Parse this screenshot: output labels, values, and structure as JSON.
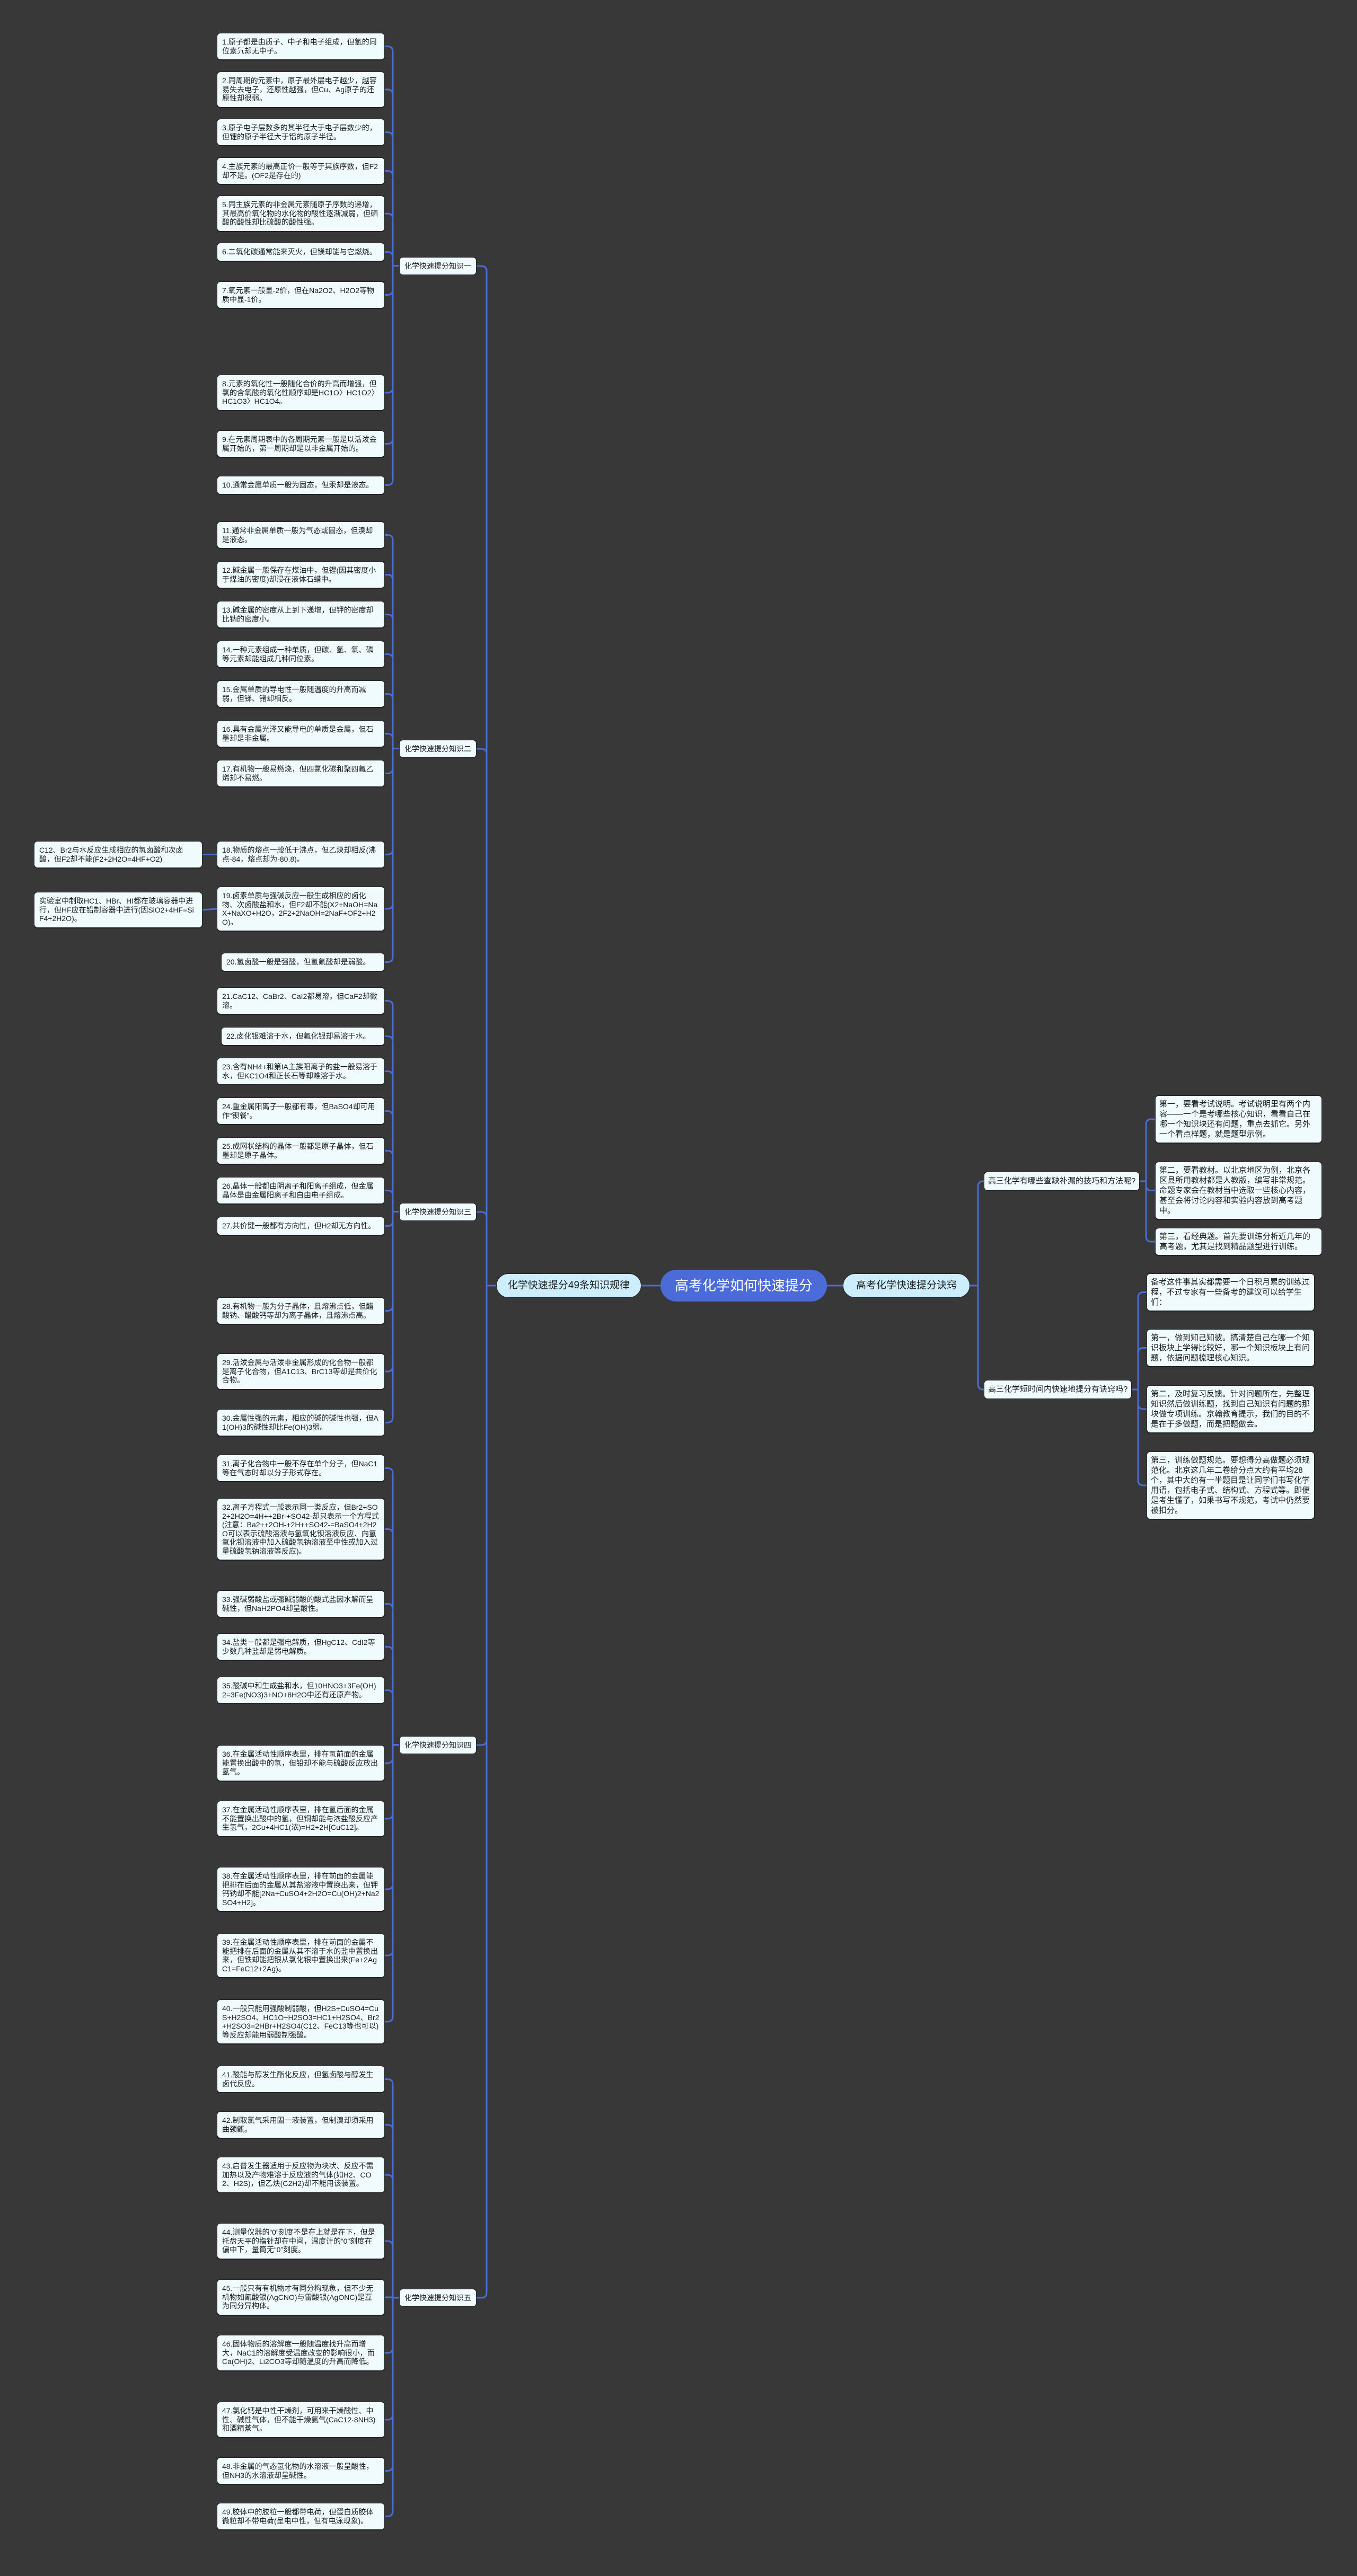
{
  "colors": {
    "background": "#393838",
    "root": "#4a6bd8",
    "branch": "#cdeefc",
    "leaf": "#effbfd",
    "line": "#4a6bd8"
  },
  "root": "高考化学如何快速提分",
  "left_branch": "化学快速提分49条知识规律",
  "right_branch": "高考化学快速提分诀窍",
  "groups": [
    {
      "label": "化学快速提分知识一",
      "items": [
        "1.原子都是由质子、中子和电子组成，但氢的同位素氕却无中子。",
        "2.同周期的元素中，原子最外层电子越少，越容易失去电子，还原性越强，但Cu、Ag原子的还原性却很弱。",
        "3.原子电子层数多的其半径大于电子层数少的，但锂的原子半径大于铝的原子半径。",
        "4.主族元素的最高正价一般等于其族序数，但F2却不是。(OF2是存在的)",
        "5.同主族元素的非金属元素随原子序数的递增，其最高价氧化物的水化物的酸性逐渐减弱，但硒酸的酸性却比硫酸的酸性强。",
        "6.二氧化碳通常能来灭火，但镁却能与它燃烧。",
        "7.氧元素一般显-2价，但在Na2O2、H2O2等物质中显-1价。",
        "8.元素的氧化性一般随化合价的升高而增强，但氯的含氧酸的氧化性顺序却是HC1O〉HC1O2〉HC1O3〉HC1O4。",
        "9.在元素周期表中的各周期元素一般是以活泼金属开始的，第一周期却是以非金属开始的。",
        "10.通常金属单质一般为固态，但汞却是液态。"
      ]
    },
    {
      "label": "化学快速提分知识二",
      "items": [
        "11.通常非金属单质一般为气态或固态，但溴却是液态。",
        "12.碱金属一般保存在煤油中，但锂(因其密度小于煤油的密度)却浸在液体石蜡中。",
        "13.碱金属的密度从上到下递增，但钾的密度却比钠的密度小。",
        "14.一种元素组成一种单质，但碳、氢、氧、磷等元素却能组成几种同位素。",
        "15.金属单质的导电性一般随温度的升高而减弱，但锑、锗却相反。",
        "16.具有金属光泽又能导电的单质是金属，但石墨却是非金属。",
        "17.有机物一般易燃烧，但四氯化碳和聚四氟乙烯却不易燃。",
        "18.物质的熔点一般低于沸点，但乙炔却相反(沸点-84，熔点却为-80.8)。",
        "19.卤素单质与强碱反应一般生成相应的卤化物、次卤酸盐和水，但F2却不能(X2+NaOH=NaX+NaXO+H2O，2F2+2NaOH=2NaF+OF2+H2O)。",
        "20.氢卤酸一般是强酸，但氢氟酸却是弱酸。"
      ]
    },
    {
      "label": "化学快速提分知识三",
      "items": [
        "21.CaC12、CaBr2、CaI2都易溶，但CaF2却微溶。",
        "22.卤化银难溶于水，但氟化银却易溶于水。",
        "23.含有NH4+和第IA主族阳离子的盐一般易溶于水，但KC1O4和正长石等却难溶于水。",
        "24.重金属阳离子一般都有毒，但BaSO4却可用作“钡餐”。",
        "25.成网状结构的晶体一般都是原子晶体，但石墨却是原子晶体。",
        "26.晶体一般都由阴离子和阳离子组成，但金属晶体是由金属阳离子和自由电子组成。",
        "27.共价键一般都有方向性，但H2却无方向性。",
        "28.有机物一般为分子晶体，且熔沸点低，但醋酸钠、醋酸钙等却为离子晶体，且熔沸点高。",
        "29.活泼金属与活泼非金属形成的化合物一般都是离子化合物，但A1C13、BrC13等却是共价化合物。",
        "30.金属性强的元素，相应的碱的碱性也强，但A1(OH)3的碱性却比Fe(OH)3弱。"
      ]
    },
    {
      "label": "化学快速提分知识四",
      "items": [
        "31.离子化合物中一般不存在单个分子，但NaC1等在气态时却以分子形式存在。",
        "32.离子方程式一般表示同一类反应，但Br2+SO2+2H2O=4H++2Br-+SO42-却只表示一个方程式(注意：Ba2++2OH-+2H++SO42-=BaSO4+2H2O可以表示硫酸溶液与氢氧化钡溶液反应、向氢氧化钡溶液中加入硫酸氢钠溶液至中性或加入过量硫酸氢钠溶液等反应)。",
        "33.强碱弱酸盐或强碱弱酸的酸式盐因水解而呈碱性，但NaH2PO4却呈酸性。",
        "34.盐类一般都是强电解质，但HgC12、CdI2等少数几种盐却是弱电解质。",
        "35.酸碱中和生成盐和水，但10HNO3+3Fe(OH)2=3Fe(NO3)3+NO+8H2O中还有还原产物。",
        "36.在金属活动性顺序表里，排在氢前面的金属能置换出酸中的氢，但铅却不能与硫酸反应放出氢气。",
        "37.在金属活动性顺序表里，排在氢后面的金属不能置换出酸中的氢，但铜却能与浓盐酸反应产生氢气，2Cu+4HC1(浓)=H2+2H[CuC12]。",
        "38.在金属活动性顺序表里，排在前面的金属能把排在后面的金属从其盐溶液中置换出来，但钾钙钠却不能[2Na+CuSO4+2H2O=Cu(OH)2+Na2SO4+H2]。",
        "39.在金属活动性顺序表里，排在前面的金属不能把排在后面的金属从其不溶于水的盐中置换出来，但铁却能把银从氯化银中置换出来(Fe+2AgC1=FeC12+2Ag)。",
        "40.一般只能用强酸制弱酸，但H2S+CuSO4=CuS+H2SO4、HC1O+H2SO3=HC1+H2SO4、Br2+H2SO3=2HBr+H2SO4(C12、FeC13等也可以)等反应却能用弱酸制强酸。"
      ]
    },
    {
      "label": "化学快速提分知识五",
      "items": [
        "41.酸能与醇发生酯化反应，但氢卤酸与醇发生卤代反应。",
        "42.制取氯气采用固一液装置，但制溴却须采用曲颈甑。",
        "43.启普发生器适用于反应物为块状、反应不需加热以及产物难溶于反应液的气体(如H2、CO2、H2S)，但乙炔(C2H2)却不能用该装置。",
        "44.测量仪器的“0”刻度不是在上就是在下，但是托盘天平的指针却在中间，温度计的“0”刻度在偏中下，量筒无“0”刻度。",
        "45.一般只有有机物才有同分构现象，但不少无机物如氰酸银(AgCNO)与雷酸银(AgONC)是互为同分异构体。",
        "46.固体物质的溶解度一般随温度找升高而增大，NaC1的溶解度受温度改变的影响很小，而Ca(OH)2、Li2CO3等却随温度的升高而降低。",
        "47.氯化钙是中性干燥剂，可用来干燥酸性、中性、碱性气体，但不能干燥氨气(CaC12·8NH3)和酒精蒸气。",
        "48.非金属的气态氢化物的水溶液一般呈酸性，但NH3的水溶液却呈碱性。",
        "49.胶体中的胶粒一般都带电荷，但蛋白质胶体微粒却不带电荷(呈电中性，但有电泳现象)。"
      ]
    }
  ],
  "extras": [
    "C12、Br2与水反应生成相应的氢卤酸和次卤酸，但F2却不能(F2+2H2O=4HF+O2)",
    "实验室中制取HC1、HBr、HI都在玻璃容器中进行，但HF应在铅制容器中进行(因SiO2+4HF=SiF4+2H2O)。"
  ],
  "right_sections": [
    {
      "label": "高三化学有哪些查缺补漏的技巧和方法呢?",
      "items": [
        "第一，要看考试说明。考试说明里有两个内容——一个是考哪些核心知识，看看自己在哪一个知识块还有问题，重点去抓它。另外一个看点样题，就是题型示例。",
        "第二，要看教材。以北京地区为例，北京各区县所用教材都是人教版，编写非常规范。命题专家会在教材当中选取一些核心内容，甚至会将讨论内容和实验内容放到高考题中。",
        "第三，看经典题。首先要训练分析近几年的高考题，尤其是找到精品题型进行训练。"
      ]
    },
    {
      "label": "高三化学短时间内快速地提分有诀窍吗?",
      "items": [
        "备考这件事其实都需要一个日积月累的训练过程，不过专家有一些备考的建议可以给学生们：",
        "第一，做到知己知彼。搞清楚自己在哪一个知识板块上学得比较好，哪一个知识板块上有问题，依据问题梳理核心知识。",
        "第二，及时复习反馈。针对问题所在，先整理知识然后做训练题，找到自己知识有问题的那块做专项训练。京翰教育提示，我们的目的不是在于多做题，而是把题做会。",
        "第三，训练做题规范。要想得分高做题必须规范化。北京这几年二卷给分点大约有平均28个，其中大约有一半题目是让同学们书写化学用语，包括电子式、结构式、方程式等。即便是考生懂了，如果书写不规范，考试中仍然要被扣分。"
      ]
    }
  ]
}
